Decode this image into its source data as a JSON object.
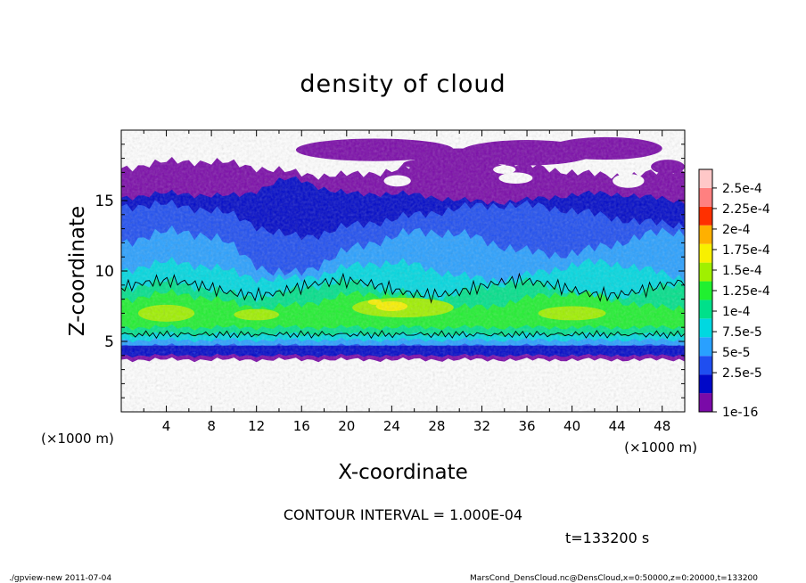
{
  "chart_data": {
    "type": "heatmap",
    "title": "density of cloud",
    "xlabel": "X-coordinate",
    "ylabel": "Z-coordinate",
    "x_unit": "(×1000 m)",
    "y_unit": "(×1000 m)",
    "xlim": [
      0,
      50
    ],
    "ylim": [
      0,
      20
    ],
    "x_ticks": [
      4,
      8,
      12,
      16,
      20,
      24,
      28,
      32,
      36,
      40,
      44,
      48
    ],
    "y_ticks": [
      5,
      10,
      15
    ],
    "colorbar": {
      "labels": [
        "1e-16",
        "2.5e-5",
        "5e-5",
        "7.5e-5",
        "1e-4",
        "1.25e-4",
        "1.5e-4",
        "1.75e-4",
        "2e-4",
        "2.25e-4",
        "2.5e-4"
      ],
      "colors": [
        "#7a0aa8",
        "#0008c8",
        "#1f4ef0",
        "#29a0ff",
        "#00d8e0",
        "#00e08a",
        "#20f030",
        "#a0f000",
        "#f8f000",
        "#ffb000",
        "#ff3000",
        "#ff8080",
        "#ffc8c8"
      ]
    },
    "contour_interval": "CONTOUR INTERVAL = 1.000E-04",
    "time": "t=133200 s",
    "grid": false
  },
  "footer": {
    "left": "./gpview-new   2011-07-04",
    "right": "MarsCond_DensCloud.nc@DensCloud,x=0:50000,z=0:20000,t=133200"
  }
}
